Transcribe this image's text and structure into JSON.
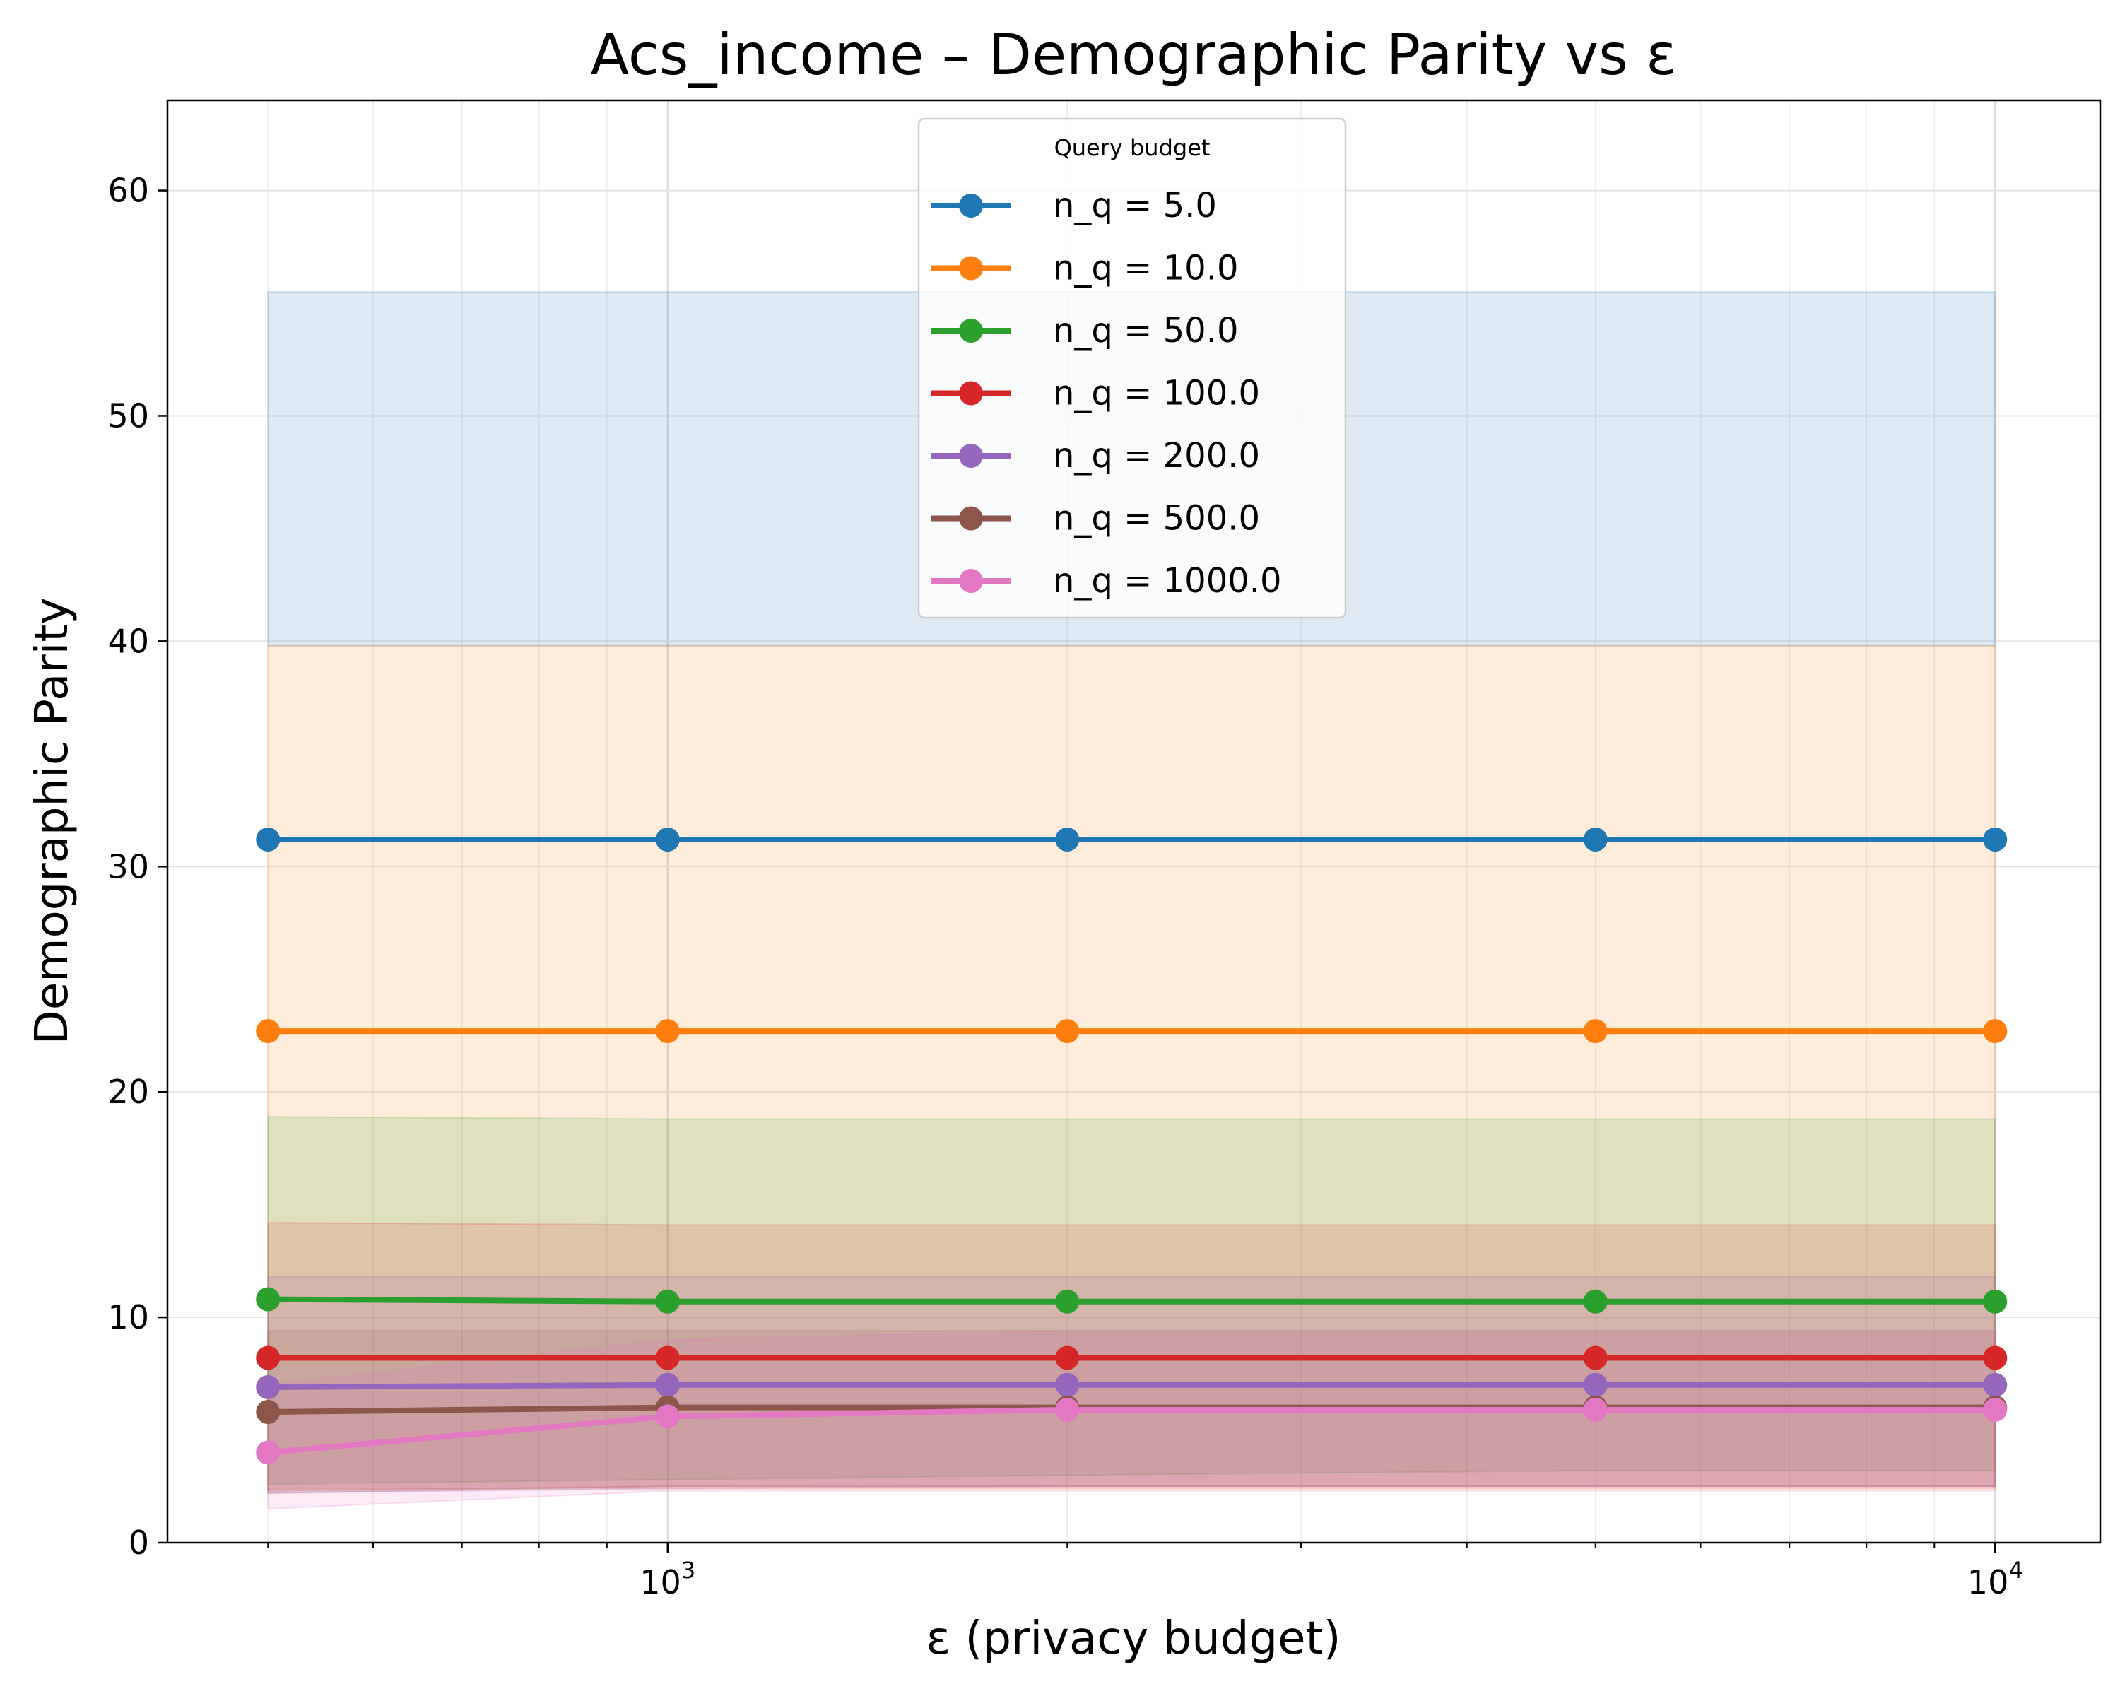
{
  "chart_data": {
    "type": "line",
    "title": "Acs_income – Demographic Parity vs ε",
    "xlabel": "ε (privacy budget)",
    "ylabel": "Demographic Parity",
    "xscale": "log",
    "xlim": [
      420,
      12000
    ],
    "ylim": [
      0,
      64
    ],
    "yticks": [
      0,
      10,
      20,
      30,
      40,
      50,
      60
    ],
    "xticks": [
      {
        "value": 1000,
        "base": "10",
        "exp": "3"
      },
      {
        "value": 10000,
        "base": "10",
        "exp": "4"
      }
    ],
    "grid": true,
    "legend": {
      "title": "Query budget",
      "placement": "upper center"
    },
    "x": [
      500,
      1000,
      2000,
      5000,
      10000
    ],
    "series": [
      {
        "name": "n_q = 5.0",
        "color": "#1f77b4",
        "values": [
          31.2,
          31.2,
          31.2,
          31.2,
          31.2
        ],
        "band_low": [
          39.8,
          39.8,
          39.8,
          39.8,
          39.8
        ],
        "band_high": [
          55.5,
          55.5,
          55.5,
          55.5,
          55.5
        ]
      },
      {
        "name": "n_q = 10.0",
        "color": "#ff7f0e",
        "values": [
          22.7,
          22.7,
          22.7,
          22.7,
          22.7
        ],
        "band_low": [
          2.4,
          2.4,
          2.4,
          2.4,
          2.4
        ],
        "band_high": [
          39.8,
          39.8,
          39.8,
          39.8,
          39.8
        ]
      },
      {
        "name": "n_q = 50.0",
        "color": "#2ca02c",
        "values": [
          10.8,
          10.7,
          10.7,
          10.7,
          10.7
        ],
        "band_low": [
          2.6,
          2.8,
          3.0,
          3.2,
          3.2
        ],
        "band_high": [
          18.9,
          18.8,
          18.8,
          18.8,
          18.8
        ]
      },
      {
        "name": "n_q = 100.0",
        "color": "#d62728",
        "values": [
          8.2,
          8.2,
          8.2,
          8.2,
          8.2
        ],
        "band_low": [
          2.3,
          2.5,
          2.5,
          2.5,
          2.5
        ],
        "band_high": [
          14.2,
          14.1,
          14.1,
          14.1,
          14.1
        ]
      },
      {
        "name": "n_q = 200.0",
        "color": "#9467bd",
        "values": [
          6.9,
          7.0,
          7.0,
          7.0,
          7.0
        ],
        "band_low": [
          2.2,
          2.4,
          2.5,
          2.5,
          2.5
        ],
        "band_high": [
          11.8,
          11.8,
          11.8,
          11.8,
          11.8
        ]
      },
      {
        "name": "n_q = 500.0",
        "color": "#8c564b",
        "values": [
          5.8,
          6.0,
          6.0,
          6.0,
          6.0
        ],
        "band_low": [
          2.2,
          2.5,
          2.5,
          2.5,
          2.5
        ],
        "band_high": [
          9.4,
          9.4,
          9.4,
          9.4,
          9.4
        ]
      },
      {
        "name": "n_q = 1000.0",
        "color": "#e377c2",
        "values": [
          4.0,
          5.6,
          5.9,
          5.9,
          5.9
        ],
        "band_low": [
          1.5,
          2.3,
          2.3,
          2.3,
          2.3
        ],
        "band_high": [
          7.0,
          9.0,
          9.4,
          9.4,
          9.4
        ]
      }
    ]
  }
}
